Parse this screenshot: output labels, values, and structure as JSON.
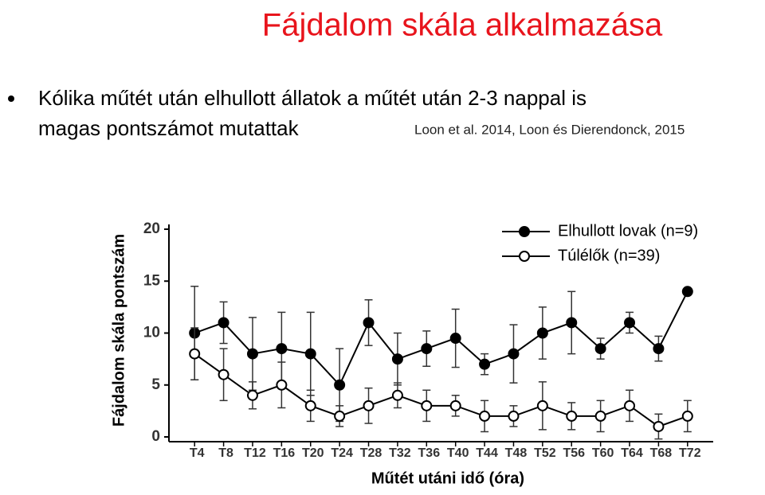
{
  "title": "Fájdalom skála alkalmazása",
  "bullet": [
    "Kólika műtét után elhullott állatok a műtét után 2-3 nappal is",
    "magas pontszámot mutattak"
  ],
  "citation": "Loon et al. 2014, Loon és Dierendonck, 2015",
  "chart_data": {
    "type": "line",
    "x_label": "Műtét utáni idő (óra)",
    "y_label": "Fájdalom skála pontszám",
    "categories": [
      "T4",
      "T8",
      "T12",
      "T16",
      "T20",
      "T24",
      "T28",
      "T32",
      "T36",
      "T40",
      "T44",
      "T48",
      "T52",
      "T56",
      "T60",
      "T64",
      "T68",
      "T72"
    ],
    "series": [
      {
        "name": "Elhullott lovak (n=9)",
        "color": "#000000",
        "marker": "filled",
        "values": [
          10,
          11,
          8,
          8.5,
          8,
          5,
          11,
          7.5,
          8.5,
          9.5,
          7,
          8,
          10,
          11,
          8.5,
          11,
          8.5,
          14
        ],
        "errors": [
          4.5,
          2,
          3.5,
          3.5,
          4,
          3.5,
          2.2,
          2.5,
          1.7,
          2.8,
          1,
          2.8,
          2.5,
          3,
          1,
          1,
          1.2,
          null
        ]
      },
      {
        "name": "Túlélők (n=39)",
        "color": "#000000",
        "marker": "open",
        "values": [
          8,
          6,
          4,
          5,
          3,
          2,
          3,
          4,
          3,
          3,
          2,
          2,
          3,
          2,
          2,
          3,
          1,
          2
        ],
        "errors": [
          2.5,
          2.5,
          1.3,
          2.2,
          1.5,
          1,
          1.7,
          1.2,
          1.5,
          1,
          1.5,
          1,
          2.3,
          1.3,
          1.5,
          1.5,
          1.2,
          1.5
        ]
      }
    ],
    "ylim": [
      0,
      20
    ],
    "yticks": [
      0,
      5,
      10,
      15,
      20
    ],
    "grid": false,
    "legend": "top-right"
  }
}
